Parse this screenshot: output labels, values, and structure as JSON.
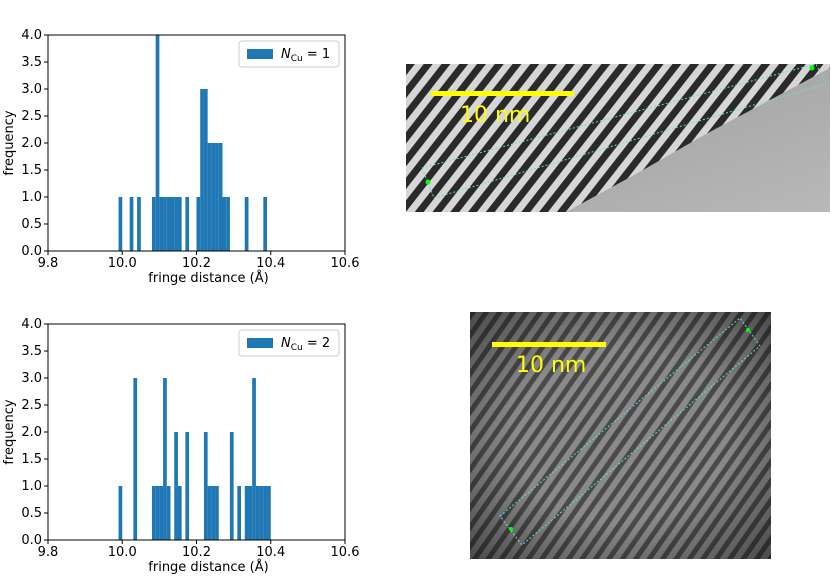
{
  "chart_data": [
    {
      "type": "bar",
      "xlabel": "fringe distance (Å)",
      "ylabel": "frequency",
      "xlim": [
        9.8,
        10.6
      ],
      "ylim": [
        0.0,
        4.0
      ],
      "x_ticks": [
        "9.8",
        "10.0",
        "10.2",
        "10.4",
        "10.6"
      ],
      "y_ticks": [
        "0.0",
        "0.5",
        "1.0",
        "1.5",
        "2.0",
        "2.5",
        "3.0",
        "3.5",
        "4.0"
      ],
      "legend": {
        "prefix": "N",
        "subscript": "Cu",
        "suffix": " = 1",
        "placement": "top-right"
      },
      "color": "#1f77b4",
      "bin_width": 0.01,
      "bins": [
        {
          "x": 9.995,
          "y": 1
        },
        {
          "x": 10.025,
          "y": 1
        },
        {
          "x": 10.045,
          "y": 1
        },
        {
          "x": 10.085,
          "y": 1
        },
        {
          "x": 10.095,
          "y": 4
        },
        {
          "x": 10.105,
          "y": 1
        },
        {
          "x": 10.115,
          "y": 1
        },
        {
          "x": 10.125,
          "y": 1
        },
        {
          "x": 10.135,
          "y": 1
        },
        {
          "x": 10.145,
          "y": 1
        },
        {
          "x": 10.155,
          "y": 1
        },
        {
          "x": 10.175,
          "y": 1
        },
        {
          "x": 10.205,
          "y": 1
        },
        {
          "x": 10.215,
          "y": 3
        },
        {
          "x": 10.225,
          "y": 3
        },
        {
          "x": 10.235,
          "y": 2
        },
        {
          "x": 10.245,
          "y": 2
        },
        {
          "x": 10.255,
          "y": 2
        },
        {
          "x": 10.265,
          "y": 2
        },
        {
          "x": 10.275,
          "y": 1
        },
        {
          "x": 10.285,
          "y": 1
        },
        {
          "x": 10.335,
          "y": 1
        },
        {
          "x": 10.385,
          "y": 1
        }
      ]
    },
    {
      "type": "bar",
      "xlabel": "fringe distance (Å)",
      "ylabel": "frequency",
      "xlim": [
        9.8,
        10.6
      ],
      "ylim": [
        0.0,
        4.0
      ],
      "x_ticks": [
        "9.8",
        "10.0",
        "10.2",
        "10.4",
        "10.6"
      ],
      "y_ticks": [
        "0.0",
        "0.5",
        "1.0",
        "1.5",
        "2.0",
        "2.5",
        "3.0",
        "3.5",
        "4.0"
      ],
      "legend": {
        "prefix": "N",
        "subscript": "Cu",
        "suffix": " = 2",
        "placement": "top-right"
      },
      "color": "#1f77b4",
      "bin_width": 0.01,
      "bins": [
        {
          "x": 9.995,
          "y": 1
        },
        {
          "x": 10.035,
          "y": 3
        },
        {
          "x": 10.085,
          "y": 1
        },
        {
          "x": 10.095,
          "y": 1
        },
        {
          "x": 10.105,
          "y": 1
        },
        {
          "x": 10.115,
          "y": 3
        },
        {
          "x": 10.125,
          "y": 1
        },
        {
          "x": 10.145,
          "y": 2
        },
        {
          "x": 10.155,
          "y": 1
        },
        {
          "x": 10.175,
          "y": 2
        },
        {
          "x": 10.225,
          "y": 2
        },
        {
          "x": 10.235,
          "y": 1
        },
        {
          "x": 10.245,
          "y": 1
        },
        {
          "x": 10.255,
          "y": 1
        },
        {
          "x": 10.295,
          "y": 2
        },
        {
          "x": 10.315,
          "y": 1
        },
        {
          "x": 10.335,
          "y": 1
        },
        {
          "x": 10.345,
          "y": 1
        },
        {
          "x": 10.355,
          "y": 3
        },
        {
          "x": 10.365,
          "y": 1
        },
        {
          "x": 10.375,
          "y": 1
        },
        {
          "x": 10.385,
          "y": 1
        },
        {
          "x": 10.395,
          "y": 1
        }
      ]
    }
  ],
  "micrographs": [
    {
      "scale_bar_label": "10 nm",
      "scale_bar_color": "#ffff00",
      "roi_color": "#66e0e0",
      "marker_color": "#00ff00"
    },
    {
      "scale_bar_label": "10 nm",
      "scale_bar_color": "#ffff00",
      "roi_color": "#66e0e0",
      "marker_color": "#00ff00"
    }
  ]
}
